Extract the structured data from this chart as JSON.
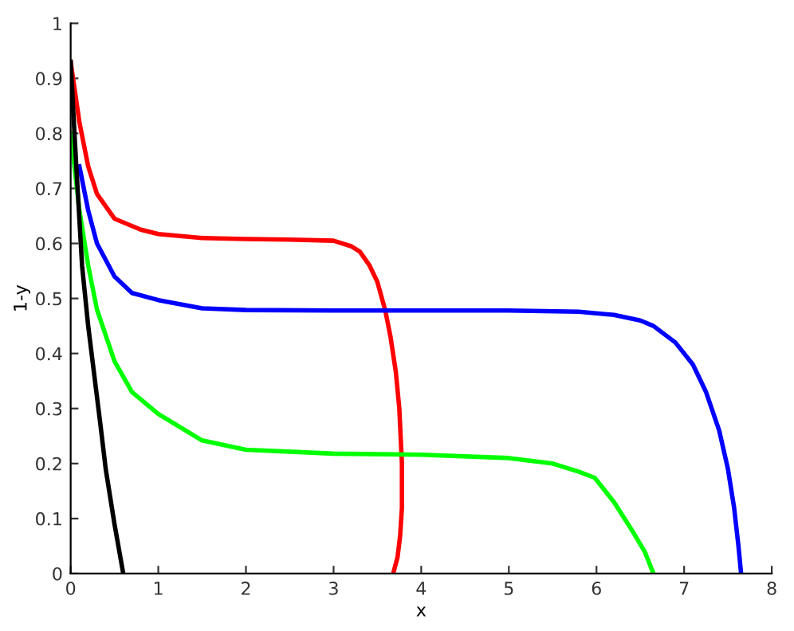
{
  "chart_data": {
    "type": "line",
    "xlabel": "x",
    "ylabel": "1-y",
    "xlim": [
      0,
      8
    ],
    "ylim": [
      0,
      1
    ],
    "xticks": [
      0,
      1,
      2,
      3,
      4,
      5,
      6,
      7,
      8
    ],
    "yticks": [
      0,
      0.1,
      0.2,
      0.3,
      0.4,
      0.5,
      0.6,
      0.7,
      0.8,
      0.9,
      1
    ],
    "grid": false,
    "marker": "none",
    "line_style": "solid",
    "series": [
      {
        "color": "#ff0000",
        "x": [
          0,
          0.1,
          0.2,
          0.3,
          0.5,
          0.8,
          1,
          1.5,
          2,
          2.5,
          3,
          3.1,
          3.2,
          3.3,
          3.41,
          3.5,
          3.59,
          3.65,
          3.71,
          3.75,
          3.78,
          3.78,
          3.76,
          3.73,
          3.68
        ],
        "values": [
          0.93,
          0.82,
          0.74,
          0.69,
          0.645,
          0.625,
          0.617,
          0.61,
          0.608,
          0.607,
          0.605,
          0.6,
          0.595,
          0.585,
          0.56,
          0.53,
          0.478,
          0.43,
          0.367,
          0.3,
          0.2,
          0.12,
          0.07,
          0.03,
          0
        ]
      },
      {
        "color": "#0000ff",
        "x": [
          0.1,
          0.2,
          0.3,
          0.5,
          0.7,
          1,
          1.5,
          2,
          3,
          4,
          5,
          5.8,
          6.2,
          6.5,
          6.65,
          6.9,
          7.1,
          7.25,
          7.4,
          7.5,
          7.57,
          7.62,
          7.65
        ],
        "values": [
          0.74,
          0.66,
          0.6,
          0.54,
          0.51,
          0.497,
          0.482,
          0.479,
          0.478,
          0.478,
          0.478,
          0.476,
          0.47,
          0.46,
          0.45,
          0.42,
          0.38,
          0.33,
          0.26,
          0.19,
          0.12,
          0.05,
          0
        ]
      },
      {
        "color": "#00ff00",
        "x": [
          0,
          0.1,
          0.2,
          0.3,
          0.5,
          0.7,
          1,
          1.5,
          2,
          3,
          4,
          5,
          5.5,
          5.8,
          5.98,
          6.2,
          6.4,
          6.55,
          6.65
        ],
        "values": [
          0.8,
          0.66,
          0.56,
          0.48,
          0.386,
          0.33,
          0.29,
          0.242,
          0.225,
          0.218,
          0.216,
          0.21,
          0.2,
          0.185,
          0.174,
          0.13,
          0.08,
          0.04,
          0
        ]
      },
      {
        "color": "#000000",
        "x": [
          0,
          0.05,
          0.13,
          0.2,
          0.34,
          0.4,
          0.5,
          0.6
        ],
        "values": [
          0.93,
          0.78,
          0.56,
          0.45,
          0.27,
          0.19,
          0.09,
          0
        ]
      }
    ]
  }
}
